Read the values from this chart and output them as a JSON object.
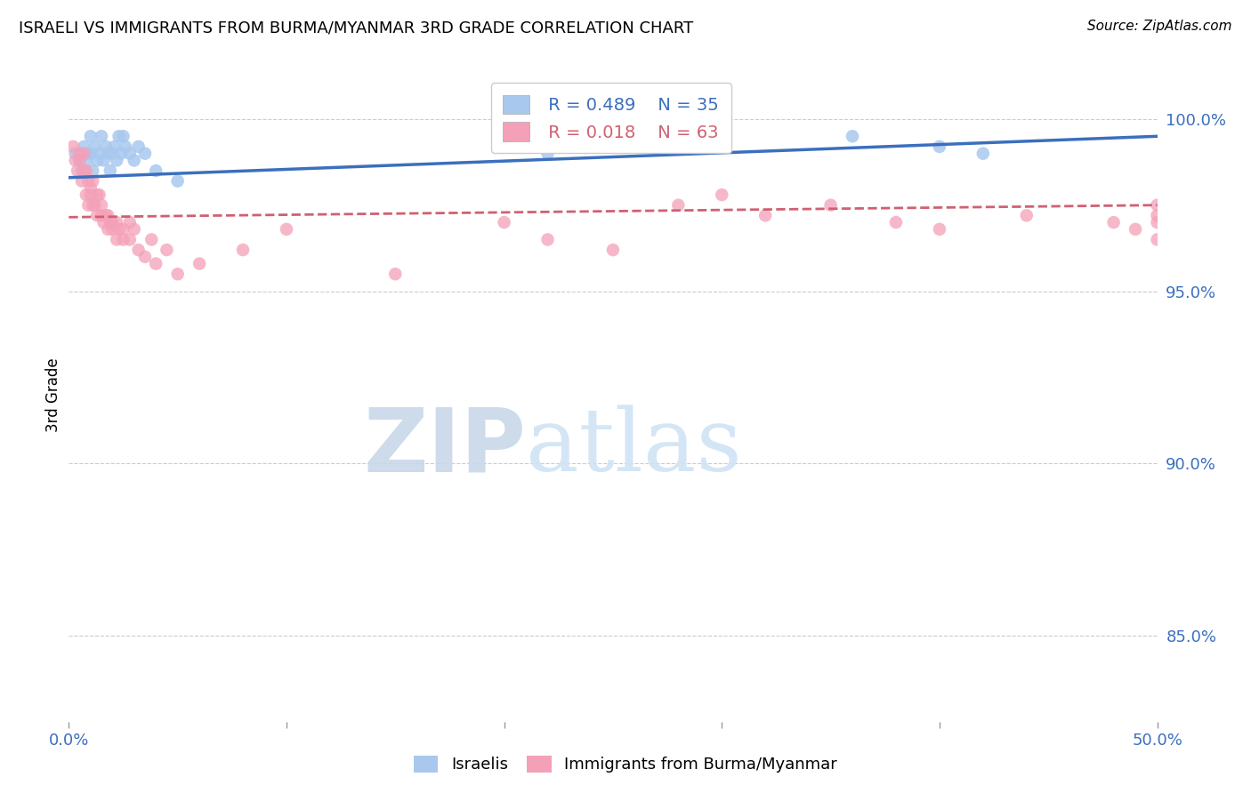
{
  "title": "ISRAELI VS IMMIGRANTS FROM BURMA/MYANMAR 3RD GRADE CORRELATION CHART",
  "source": "Source: ZipAtlas.com",
  "ylabel_label": "3rd Grade",
  "xmin": 0.0,
  "xmax": 0.5,
  "ymin": 82.5,
  "ymax": 101.5,
  "legend_blue_r": "R = 0.489",
  "legend_blue_n": "N = 35",
  "legend_pink_r": "R = 0.018",
  "legend_pink_n": "N = 63",
  "blue_color": "#A8C8EE",
  "pink_color": "#F4A0B8",
  "blue_line_color": "#3B6FBE",
  "pink_line_color": "#D06070",
  "grid_color": "#CCCCCC",
  "watermark_color": "#D8EAF8",
  "blue_scatter_x": [
    0.003,
    0.005,
    0.006,
    0.007,
    0.008,
    0.009,
    0.01,
    0.01,
    0.011,
    0.012,
    0.013,
    0.014,
    0.015,
    0.016,
    0.017,
    0.018,
    0.019,
    0.02,
    0.021,
    0.022,
    0.023,
    0.024,
    0.025,
    0.026,
    0.028,
    0.03,
    0.032,
    0.035,
    0.04,
    0.05,
    0.22,
    0.3,
    0.36,
    0.4,
    0.42
  ],
  "blue_scatter_y": [
    99.0,
    98.8,
    98.5,
    99.2,
    98.8,
    99.0,
    99.5,
    99.0,
    98.5,
    99.2,
    98.8,
    99.0,
    99.5,
    98.8,
    99.2,
    99.0,
    98.5,
    99.0,
    99.2,
    98.8,
    99.5,
    99.0,
    99.5,
    99.2,
    99.0,
    98.8,
    99.2,
    99.0,
    98.5,
    98.2,
    99.0,
    99.5,
    99.5,
    99.2,
    99.0
  ],
  "pink_scatter_x": [
    0.002,
    0.003,
    0.004,
    0.005,
    0.005,
    0.006,
    0.007,
    0.007,
    0.008,
    0.008,
    0.009,
    0.009,
    0.01,
    0.01,
    0.011,
    0.011,
    0.012,
    0.013,
    0.013,
    0.014,
    0.015,
    0.015,
    0.016,
    0.017,
    0.018,
    0.018,
    0.019,
    0.02,
    0.02,
    0.022,
    0.022,
    0.023,
    0.025,
    0.025,
    0.028,
    0.028,
    0.03,
    0.032,
    0.035,
    0.038,
    0.04,
    0.045,
    0.05,
    0.06,
    0.08,
    0.1,
    0.15,
    0.2,
    0.22,
    0.25,
    0.28,
    0.3,
    0.32,
    0.35,
    0.38,
    0.4,
    0.44,
    0.48,
    0.49,
    0.5,
    0.5,
    0.5,
    0.5
  ],
  "pink_scatter_y": [
    99.2,
    98.8,
    98.5,
    98.8,
    99.0,
    98.2,
    98.5,
    99.0,
    97.8,
    98.5,
    97.5,
    98.2,
    97.8,
    98.0,
    97.5,
    98.2,
    97.5,
    97.8,
    97.2,
    97.8,
    97.2,
    97.5,
    97.0,
    97.2,
    96.8,
    97.2,
    97.0,
    96.8,
    97.0,
    96.5,
    97.0,
    96.8,
    96.5,
    96.8,
    96.5,
    97.0,
    96.8,
    96.2,
    96.0,
    96.5,
    95.8,
    96.2,
    95.5,
    95.8,
    96.2,
    96.8,
    95.5,
    97.0,
    96.5,
    96.2,
    97.5,
    97.8,
    97.2,
    97.5,
    97.0,
    96.8,
    97.2,
    97.0,
    96.8,
    97.5,
    97.2,
    97.0,
    96.5
  ],
  "ytick_positions": [
    85.0,
    90.0,
    95.0,
    100.0
  ],
  "ytick_labels": [
    "85.0%",
    "90.0%",
    "95.0%",
    "100.0%"
  ],
  "xtick_positions": [
    0.0,
    0.1,
    0.2,
    0.3,
    0.4,
    0.5
  ],
  "xtick_labels": [
    "0.0%",
    "",
    "",
    "",
    "",
    "50.0%"
  ]
}
